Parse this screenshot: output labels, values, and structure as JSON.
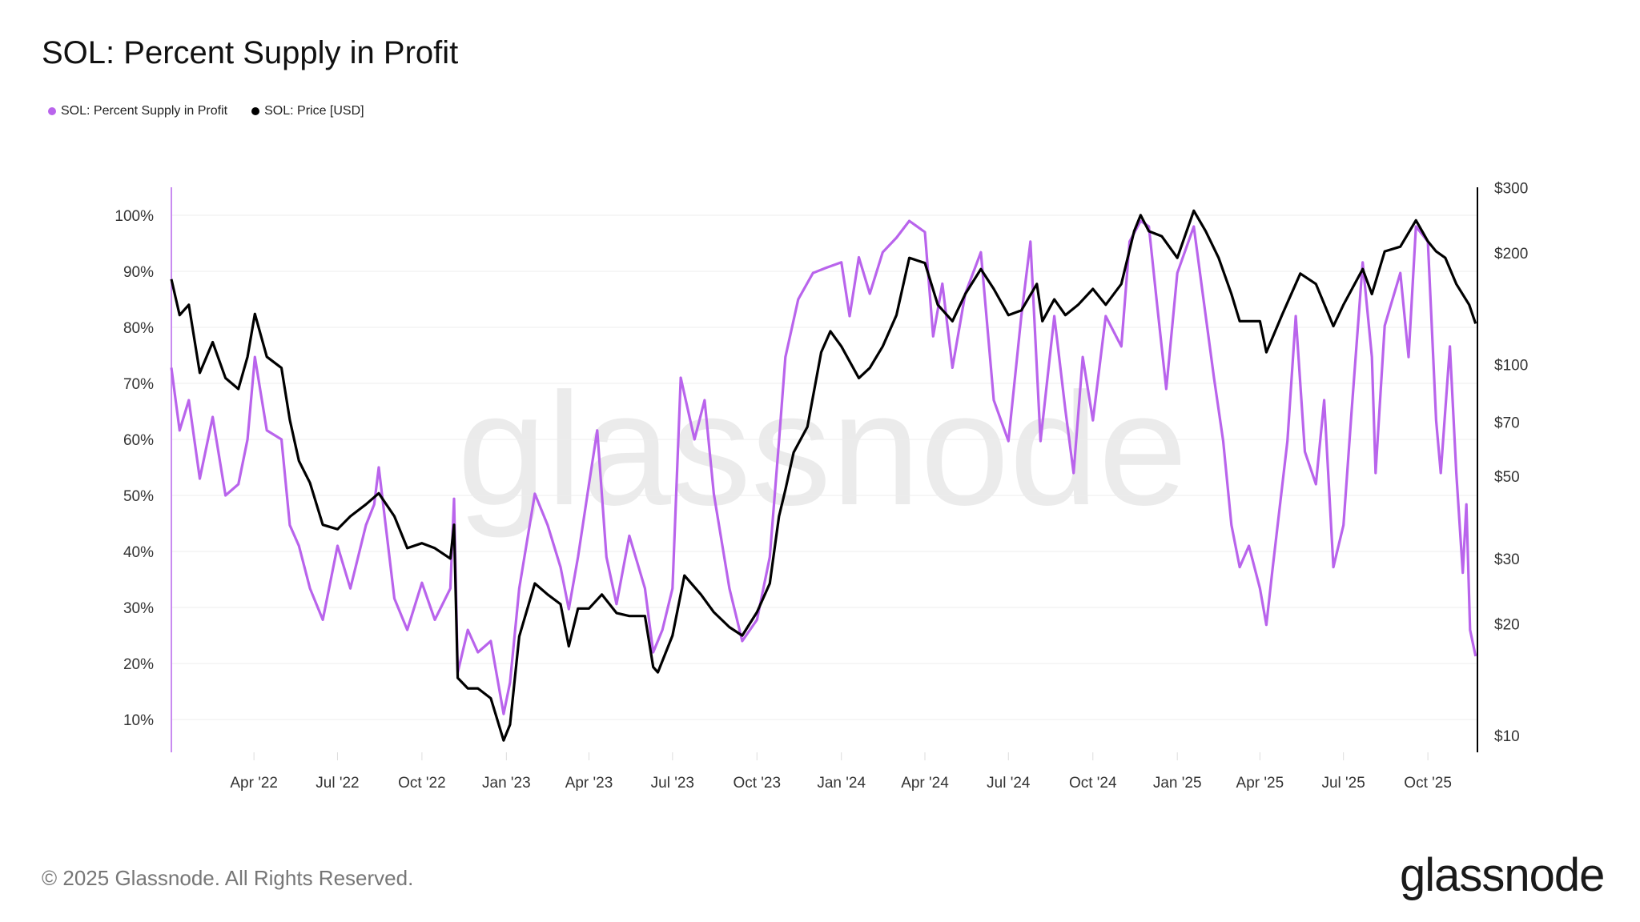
{
  "header": {
    "title": "SOL: Percent Supply in Profit"
  },
  "legend": [
    {
      "label": "SOL: Percent Supply in Profit",
      "color": "#b964ec"
    },
    {
      "label": "SOL: Price [USD]",
      "color": "#000000"
    }
  ],
  "watermark": "glassnode",
  "footer": {
    "copyright": "© 2025 Glassnode. All Rights Reserved.",
    "logo": "glassnode"
  },
  "chart_data": {
    "type": "line",
    "title": "SOL: Percent Supply in Profit",
    "x_range": [
      "2022-01-01",
      "2025-11-24"
    ],
    "x_ticks": [
      "Apr '22",
      "Jul '22",
      "Oct '22",
      "Jan '23",
      "Apr '23",
      "Jul '23",
      "Oct '23",
      "Jan '24",
      "Apr '24",
      "Jul '24",
      "Oct '24",
      "Jan '25",
      "Apr '25",
      "Jul '25",
      "Oct '25"
    ],
    "y_left": {
      "ticks": [
        "10%",
        "20%",
        "30%",
        "40%",
        "50%",
        "60%",
        "70%",
        "80%",
        "90%",
        "100%"
      ],
      "range": [
        4,
        106
      ],
      "scale": "linear"
    },
    "y_right": {
      "ticks": [
        "$10",
        "$20",
        "$30",
        "$50",
        "$70",
        "$100",
        "$200",
        "$300"
      ],
      "range": [
        10,
        300
      ],
      "scale": "log"
    },
    "grid": true,
    "legend_position": "top-left",
    "series": [
      {
        "name": "SOL: Percent Supply in Profit",
        "axis": "left",
        "color": "#b964ec",
        "points": [
          [
            "2022-01-01",
            72.8
          ],
          [
            "2022-01-10",
            61.6
          ],
          [
            "2022-01-20",
            67
          ],
          [
            "2022-02-01",
            53
          ],
          [
            "2022-02-15",
            64
          ],
          [
            "2022-03-01",
            50
          ],
          [
            "2022-03-15",
            52
          ],
          [
            "2022-03-25",
            60
          ],
          [
            "2022-04-02",
            74.7
          ],
          [
            "2022-04-15",
            61.6
          ],
          [
            "2022-05-01",
            60
          ],
          [
            "2022-05-10",
            44.7
          ],
          [
            "2022-05-20",
            41
          ],
          [
            "2022-06-01",
            33.4
          ],
          [
            "2022-06-15",
            27.8
          ],
          [
            "2022-07-01",
            41
          ],
          [
            "2022-07-15",
            33.4
          ],
          [
            "2022-08-01",
            44.7
          ],
          [
            "2022-08-10",
            48.4
          ],
          [
            "2022-08-15",
            55
          ],
          [
            "2022-09-01",
            31.6
          ],
          [
            "2022-09-15",
            26
          ],
          [
            "2022-10-01",
            34.4
          ],
          [
            "2022-10-15",
            27.8
          ],
          [
            "2022-11-01",
            33.4
          ],
          [
            "2022-11-05",
            49.4
          ],
          [
            "2022-11-09",
            18.4
          ],
          [
            "2022-11-20",
            26
          ],
          [
            "2022-12-01",
            22
          ],
          [
            "2022-12-15",
            24
          ],
          [
            "2022-12-29",
            11
          ],
          [
            "2023-01-05",
            16.6
          ],
          [
            "2023-01-15",
            33.4
          ],
          [
            "2023-02-01",
            50.3
          ],
          [
            "2023-02-15",
            44.7
          ],
          [
            "2023-03-01",
            37.2
          ],
          [
            "2023-03-10",
            29.7
          ],
          [
            "2023-03-20",
            39
          ],
          [
            "2023-04-01",
            52
          ],
          [
            "2023-04-10",
            61.6
          ],
          [
            "2023-04-20",
            39
          ],
          [
            "2023-05-01",
            30.6
          ],
          [
            "2023-05-15",
            42.8
          ],
          [
            "2023-06-01",
            33.4
          ],
          [
            "2023-06-10",
            22
          ],
          [
            "2023-06-20",
            26
          ],
          [
            "2023-07-01",
            33.4
          ],
          [
            "2023-07-10",
            71
          ],
          [
            "2023-07-25",
            60
          ],
          [
            "2023-08-05",
            67
          ],
          [
            "2023-08-15",
            50.3
          ],
          [
            "2023-09-01",
            33.4
          ],
          [
            "2023-09-15",
            24
          ],
          [
            "2023-10-01",
            27.8
          ],
          [
            "2023-10-15",
            39
          ],
          [
            "2023-10-25",
            59.7
          ],
          [
            "2023-11-01",
            74.7
          ],
          [
            "2023-11-15",
            85
          ],
          [
            "2023-12-01",
            89.7
          ],
          [
            "2023-12-15",
            90.6
          ],
          [
            "2024-01-01",
            91.6
          ],
          [
            "2024-01-10",
            82
          ],
          [
            "2024-01-20",
            92.5
          ],
          [
            "2024-02-01",
            86
          ],
          [
            "2024-02-15",
            93.4
          ],
          [
            "2024-03-01",
            96
          ],
          [
            "2024-03-15",
            99
          ],
          [
            "2024-04-01",
            97
          ],
          [
            "2024-04-10",
            78.4
          ],
          [
            "2024-04-20",
            87.8
          ],
          [
            "2024-05-01",
            72.8
          ],
          [
            "2024-05-15",
            86
          ],
          [
            "2024-06-01",
            93.4
          ],
          [
            "2024-06-15",
            67
          ],
          [
            "2024-07-01",
            59.7
          ],
          [
            "2024-07-15",
            82
          ],
          [
            "2024-07-25",
            95.3
          ],
          [
            "2024-08-05",
            59.7
          ],
          [
            "2024-08-20",
            82
          ],
          [
            "2024-09-01",
            65.3
          ],
          [
            "2024-09-10",
            54
          ],
          [
            "2024-09-20",
            74.7
          ],
          [
            "2024-10-01",
            63.4
          ],
          [
            "2024-10-15",
            82
          ],
          [
            "2024-11-01",
            76.6
          ],
          [
            "2024-11-10",
            95.3
          ],
          [
            "2024-11-22",
            99
          ],
          [
            "2024-12-01",
            98
          ],
          [
            "2024-12-10",
            84
          ],
          [
            "2024-12-20",
            69
          ],
          [
            "2025-01-01",
            89.7
          ],
          [
            "2025-01-19",
            98
          ],
          [
            "2025-02-01",
            82
          ],
          [
            "2025-02-10",
            71
          ],
          [
            "2025-02-20",
            59.7
          ],
          [
            "2025-03-01",
            44.7
          ],
          [
            "2025-03-10",
            37.2
          ],
          [
            "2025-03-20",
            41
          ],
          [
            "2025-04-01",
            33.4
          ],
          [
            "2025-04-08",
            26.9
          ],
          [
            "2025-04-15",
            37.2
          ],
          [
            "2025-05-01",
            59.7
          ],
          [
            "2025-05-10",
            82
          ],
          [
            "2025-05-20",
            57.8
          ],
          [
            "2025-06-01",
            52
          ],
          [
            "2025-06-10",
            67
          ],
          [
            "2025-06-20",
            37.2
          ],
          [
            "2025-07-01",
            44.7
          ],
          [
            "2025-07-10",
            65.3
          ],
          [
            "2025-07-22",
            91.6
          ],
          [
            "2025-08-01",
            74.7
          ],
          [
            "2025-08-05",
            54
          ],
          [
            "2025-08-15",
            80.3
          ],
          [
            "2025-09-01",
            89.7
          ],
          [
            "2025-09-10",
            74.7
          ],
          [
            "2025-09-18",
            98
          ],
          [
            "2025-10-01",
            95.3
          ],
          [
            "2025-10-10",
            63.4
          ],
          [
            "2025-10-15",
            54
          ],
          [
            "2025-10-25",
            76.6
          ],
          [
            "2025-11-01",
            54
          ],
          [
            "2025-11-08",
            36.2
          ],
          [
            "2025-11-12",
            48.4
          ],
          [
            "2025-11-16",
            26
          ],
          [
            "2025-11-22",
            21.3
          ]
        ]
      },
      {
        "name": "SOL: Price [USD]",
        "axis": "right",
        "color": "#000000",
        "points": [
          [
            "2022-01-01",
            170
          ],
          [
            "2022-01-10",
            136
          ],
          [
            "2022-01-20",
            145
          ],
          [
            "2022-02-01",
            95
          ],
          [
            "2022-02-15",
            115
          ],
          [
            "2022-03-01",
            92
          ],
          [
            "2022-03-15",
            86
          ],
          [
            "2022-03-25",
            105
          ],
          [
            "2022-04-02",
            137
          ],
          [
            "2022-04-15",
            105
          ],
          [
            "2022-05-01",
            98
          ],
          [
            "2022-05-10",
            71
          ],
          [
            "2022-05-20",
            55
          ],
          [
            "2022-06-01",
            48
          ],
          [
            "2022-06-15",
            37
          ],
          [
            "2022-07-01",
            36
          ],
          [
            "2022-07-15",
            39
          ],
          [
            "2022-08-01",
            42
          ],
          [
            "2022-08-15",
            45
          ],
          [
            "2022-09-01",
            39
          ],
          [
            "2022-09-15",
            32
          ],
          [
            "2022-10-01",
            33
          ],
          [
            "2022-10-15",
            32
          ],
          [
            "2022-11-01",
            30
          ],
          [
            "2022-11-05",
            37
          ],
          [
            "2022-11-09",
            14.3
          ],
          [
            "2022-11-20",
            13.4
          ],
          [
            "2022-12-01",
            13.4
          ],
          [
            "2022-12-15",
            12.6
          ],
          [
            "2022-12-29",
            9.7
          ],
          [
            "2023-01-05",
            10.7
          ],
          [
            "2023-01-15",
            18.5
          ],
          [
            "2023-02-01",
            25.7
          ],
          [
            "2023-02-15",
            24
          ],
          [
            "2023-03-01",
            22.6
          ],
          [
            "2023-03-10",
            17.4
          ],
          [
            "2023-03-20",
            22
          ],
          [
            "2023-04-01",
            22
          ],
          [
            "2023-04-15",
            24
          ],
          [
            "2023-05-01",
            21.4
          ],
          [
            "2023-05-15",
            21
          ],
          [
            "2023-06-01",
            21
          ],
          [
            "2023-06-10",
            15.3
          ],
          [
            "2023-06-15",
            14.8
          ],
          [
            "2023-07-01",
            18.6
          ],
          [
            "2023-07-14",
            27
          ],
          [
            "2023-08-01",
            24
          ],
          [
            "2023-08-15",
            21.5
          ],
          [
            "2023-09-01",
            19.6
          ],
          [
            "2023-09-15",
            18.6
          ],
          [
            "2023-10-01",
            21.5
          ],
          [
            "2023-10-15",
            25.7
          ],
          [
            "2023-10-25",
            39
          ],
          [
            "2023-11-01",
            46
          ],
          [
            "2023-11-10",
            58
          ],
          [
            "2023-11-25",
            68
          ],
          [
            "2023-12-10",
            108
          ],
          [
            "2023-12-20",
            123
          ],
          [
            "2024-01-01",
            112
          ],
          [
            "2024-01-20",
            92
          ],
          [
            "2024-02-01",
            98
          ],
          [
            "2024-02-15",
            112
          ],
          [
            "2024-03-01",
            136
          ],
          [
            "2024-03-15",
            194
          ],
          [
            "2024-04-01",
            188
          ],
          [
            "2024-04-15",
            145
          ],
          [
            "2024-05-01",
            131
          ],
          [
            "2024-05-15",
            155
          ],
          [
            "2024-06-01",
            181
          ],
          [
            "2024-06-15",
            160
          ],
          [
            "2024-07-01",
            136
          ],
          [
            "2024-07-15",
            140
          ],
          [
            "2024-08-01",
            165
          ],
          [
            "2024-08-07",
            131
          ],
          [
            "2024-08-20",
            150
          ],
          [
            "2024-09-01",
            136
          ],
          [
            "2024-09-15",
            145
          ],
          [
            "2024-10-01",
            160
          ],
          [
            "2024-10-15",
            145
          ],
          [
            "2024-11-01",
            165
          ],
          [
            "2024-11-15",
            229
          ],
          [
            "2024-11-22",
            253
          ],
          [
            "2024-12-01",
            229
          ],
          [
            "2024-12-15",
            222
          ],
          [
            "2025-01-01",
            194
          ],
          [
            "2025-01-19",
            260
          ],
          [
            "2025-02-01",
            229
          ],
          [
            "2025-02-15",
            194
          ],
          [
            "2025-03-01",
            155
          ],
          [
            "2025-03-10",
            131
          ],
          [
            "2025-04-01",
            131
          ],
          [
            "2025-04-08",
            108
          ],
          [
            "2025-04-25",
            136
          ],
          [
            "2025-05-15",
            176
          ],
          [
            "2025-06-01",
            165
          ],
          [
            "2025-06-20",
            127
          ],
          [
            "2025-07-01",
            145
          ],
          [
            "2025-07-22",
            181
          ],
          [
            "2025-08-01",
            155
          ],
          [
            "2025-08-15",
            202
          ],
          [
            "2025-09-01",
            208
          ],
          [
            "2025-09-18",
            245
          ],
          [
            "2025-10-01",
            215
          ],
          [
            "2025-10-10",
            202
          ],
          [
            "2025-10-20",
            194
          ],
          [
            "2025-11-01",
            165
          ],
          [
            "2025-11-15",
            145
          ],
          [
            "2025-11-22",
            129
          ]
        ]
      }
    ]
  }
}
